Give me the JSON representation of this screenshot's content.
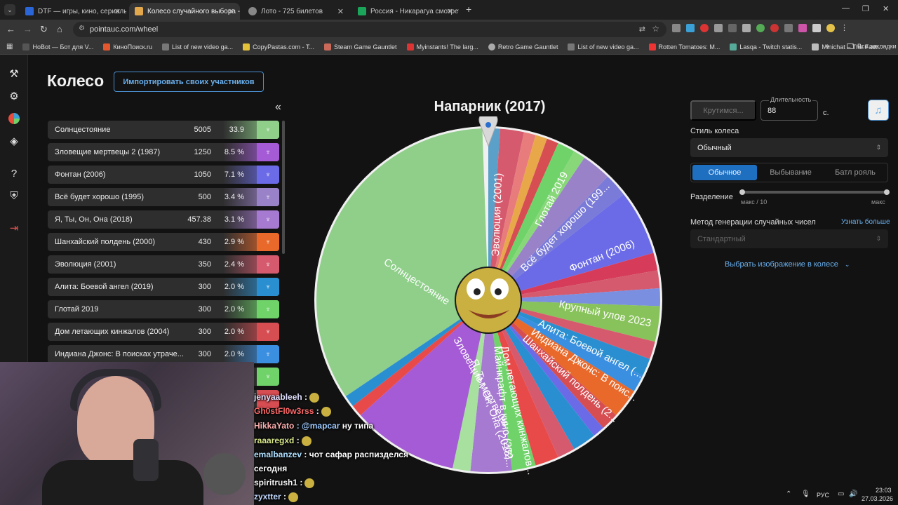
{
  "browser": {
    "tabs": [
      {
        "title": "DTF — игры, кино, сериалы, р",
        "fav_color": "#2b66d9",
        "active": false
      },
      {
        "title": "Колесо случайного выбора - ",
        "fav_color": "#e3a84b",
        "active": true
      },
      {
        "title": "Лото - 725 билетов",
        "fav_color": "#888888",
        "active": false
      },
      {
        "title": "Россия - Никарагуа смотреть",
        "fav_color": "#1aa55b",
        "active": false
      }
    ],
    "new_tab": "+",
    "url": "pointauc.com/wheel",
    "bookmarks": [
      "HoBot — Бот для V...",
      "КиноПоиск.ru",
      "List of new video ga...",
      "CopyPastas.com - T...",
      "Steam Game Gauntlet",
      "Myinstants! The larg...",
      "Retro Game Gauntlet",
      "List of new video ga...",
      "Rotten Tomatoes: M...",
      "Lasqa - Twitch statis...",
      "Minichat – The Fast..."
    ],
    "bookmarks_more": "»",
    "all_bookmarks": "Все закладки"
  },
  "page": {
    "title": "Колесо",
    "import_label": "Импортировать своих участников",
    "collapse": "«",
    "wheel_title": "Напарник (2017)"
  },
  "participants": [
    {
      "name": "Солнцестояние",
      "amount": "5005",
      "percent": "33.9 %",
      "color": "#8fcf8a"
    },
    {
      "name": "Зловещие мертвецы 2 (1987)",
      "amount": "1250",
      "percent": "8.5 %",
      "color": "#a55bd6"
    },
    {
      "name": "Фонтан (2006)",
      "amount": "1050",
      "percent": "7.1 %",
      "color": "#6b6be8"
    },
    {
      "name": "Всё будет хорошо (1995)",
      "amount": "500",
      "percent": "3.4 %",
      "color": "#9a82c9"
    },
    {
      "name": "Я, Ты, Он, Она (2018)",
      "amount": "457.38",
      "percent": "3.1 %",
      "color": "#a67ad0"
    },
    {
      "name": "Шанхайский полдень (2000)",
      "amount": "430",
      "percent": "2.9 %",
      "color": "#e8692a"
    },
    {
      "name": "Эволюция (2001)",
      "amount": "350",
      "percent": "2.4 %",
      "color": "#d65a6e"
    },
    {
      "name": "Алита: Боевой ангел (2019)",
      "amount": "300",
      "percent": "2.0 %",
      "color": "#2a8fd0"
    },
    {
      "name": "Глотай 2019",
      "amount": "300",
      "percent": "2.0 %",
      "color": "#6fd36a"
    },
    {
      "name": "Дом летающих кинжалов (2004)",
      "amount": "300",
      "percent": "2.0 %",
      "color": "#d64d52"
    },
    {
      "name": "Индиана Джонс: В поисках утраче...",
      "amount": "300",
      "percent": "2.0 %",
      "color": "#3a8fe0"
    }
  ],
  "wheel_labels": [
    "Солнцестояние",
    "Эволюция (2001)",
    "Глотай 2019",
    "Всё будет хорошо (199...",
    "Фонтан (2006)",
    "Крупный улов 2023",
    "Алита: Боевой ангел (...",
    "Индиана Джонс: В поис...",
    "Шанхайский полдень (2...",
    "Дом летающих кинжалов...",
    "Майнкрафт в кино (202...",
    "Я, Ты, Он, Она (2018)",
    "Зловещие мертвецы"
  ],
  "controls": {
    "spin_label": "Крутимся...",
    "duration_label": "Длительность",
    "duration_value": "88",
    "duration_unit": "с.",
    "music_icon": "♫",
    "style_label": "Стиль колеса",
    "style_value": "Обычный",
    "modes": [
      "Обычное",
      "Выбывание",
      "Батл рояль"
    ],
    "split_label": "Разделение",
    "split_min": "макс / 10",
    "split_max": "макс",
    "rng_label": "Метод генерации случайных чисел",
    "rng_link": "Узнать больше",
    "rng_value": "Стандартный",
    "image_link": "Выбрать изображение в колесе"
  },
  "chat": [
    {
      "user": "jenyaableeh",
      "text": ":"
    },
    {
      "user": "Gh0stFl0w3rss",
      "text": ":"
    },
    {
      "user": "HikkaYato",
      "text": ": @mapcar",
      "extra": "ну типа"
    },
    {
      "user": "raaaregxd",
      "text": ":"
    },
    {
      "user": "emalbanzev",
      "text": ": чот сафар распизделся"
    },
    {
      "user": "",
      "text": "сегодня"
    },
    {
      "user": "spiritrush1",
      "text": ":"
    },
    {
      "user": "zyxtter",
      "text": ":"
    }
  ],
  "tray": {
    "lang": "РУС",
    "time": "23:03",
    "date": "27.03.2026"
  }
}
